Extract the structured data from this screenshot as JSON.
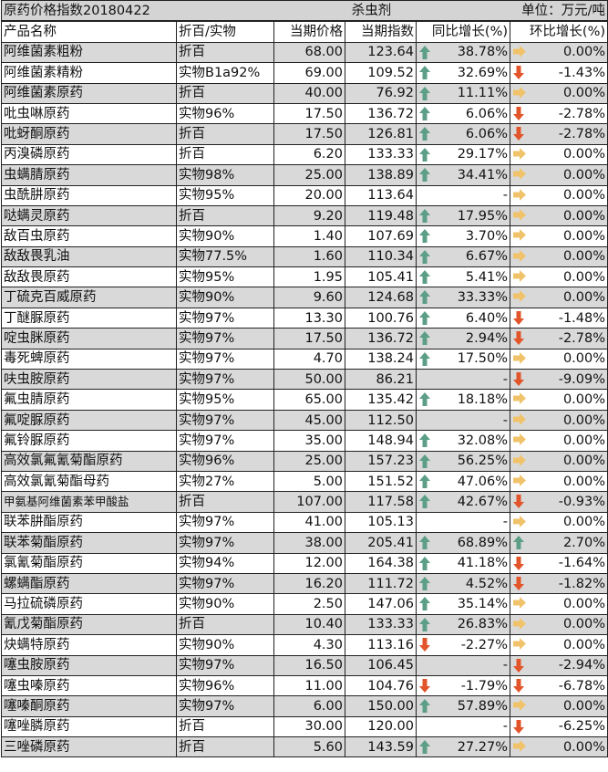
{
  "title": {
    "left": "原药价格指数20180422",
    "center": "杀虫剂",
    "right": "单位：万元/吨"
  },
  "headers": [
    "产品名称",
    "折百/实物",
    "当期价格",
    "当期指数",
    "同比增长(%)",
    "环比增长(%)"
  ],
  "colors": {
    "up": "#5d9f86",
    "down": "#e2552a",
    "flat": "#f0c36a",
    "row_gray": "#d9d9d9"
  },
  "rows": [
    {
      "name": "阿维菌素粗粉",
      "spec": "折百",
      "price": "68.00",
      "index": "123.64",
      "yoy": "38.78%",
      "yoy_icon": "up",
      "mom": "0.00%",
      "mom_icon": "flat"
    },
    {
      "name": "阿维菌素精粉",
      "spec": "实物B1a92%",
      "price": "69.00",
      "index": "109.52",
      "yoy": "32.69%",
      "yoy_icon": "up",
      "mom": "-1.43%",
      "mom_icon": "down"
    },
    {
      "name": "阿维菌素原药",
      "spec": "折百",
      "price": "40.00",
      "index": "76.92",
      "yoy": "11.11%",
      "yoy_icon": "up",
      "mom": "0.00%",
      "mom_icon": "flat"
    },
    {
      "name": "吡虫啉原药",
      "spec": "实物96%",
      "price": "17.50",
      "index": "136.72",
      "yoy": "6.06%",
      "yoy_icon": "up",
      "mom": "-2.78%",
      "mom_icon": "down"
    },
    {
      "name": "吡蚜酮原药",
      "spec": "折百",
      "price": "17.50",
      "index": "126.81",
      "yoy": "6.06%",
      "yoy_icon": "up",
      "mom": "-2.78%",
      "mom_icon": "down"
    },
    {
      "name": "丙溴磷原药",
      "spec": "折百",
      "price": "6.20",
      "index": "133.33",
      "yoy": "29.17%",
      "yoy_icon": "up",
      "mom": "0.00%",
      "mom_icon": "flat"
    },
    {
      "name": "虫螨腈原药",
      "spec": "实物98%",
      "price": "25.00",
      "index": "138.89",
      "yoy": "34.41%",
      "yoy_icon": "up",
      "mom": "0.00%",
      "mom_icon": "flat"
    },
    {
      "name": "虫酰肼原药",
      "spec": "实物95%",
      "price": "20.00",
      "index": "113.64",
      "yoy": "-",
      "yoy_icon": "",
      "mom": "0.00%",
      "mom_icon": "flat"
    },
    {
      "name": "哒螨灵原药",
      "spec": "折百",
      "price": "9.20",
      "index": "119.48",
      "yoy": "17.95%",
      "yoy_icon": "up",
      "mom": "0.00%",
      "mom_icon": "flat"
    },
    {
      "name": "敌百虫原药",
      "spec": "实物90%",
      "price": "1.40",
      "index": "107.69",
      "yoy": "3.70%",
      "yoy_icon": "up",
      "mom": "0.00%",
      "mom_icon": "flat"
    },
    {
      "name": "敌敌畏乳油",
      "spec": "实物77.5%",
      "price": "1.60",
      "index": "110.34",
      "yoy": "6.67%",
      "yoy_icon": "up",
      "mom": "0.00%",
      "mom_icon": "flat"
    },
    {
      "name": "敌敌畏原药",
      "spec": "实物95%",
      "price": "1.95",
      "index": "105.41",
      "yoy": "5.41%",
      "yoy_icon": "up",
      "mom": "0.00%",
      "mom_icon": "flat"
    },
    {
      "name": "丁硫克百威原药",
      "spec": "实物90%",
      "price": "9.60",
      "index": "124.68",
      "yoy": "33.33%",
      "yoy_icon": "up",
      "mom": "0.00%",
      "mom_icon": "flat"
    },
    {
      "name": "丁醚脲原药",
      "spec": "实物97%",
      "price": "13.30",
      "index": "100.76",
      "yoy": "6.40%",
      "yoy_icon": "up",
      "mom": "-1.48%",
      "mom_icon": "down"
    },
    {
      "name": "啶虫脒原药",
      "spec": "实物97%",
      "price": "17.50",
      "index": "136.72",
      "yoy": "2.94%",
      "yoy_icon": "up",
      "mom": "-2.78%",
      "mom_icon": "down"
    },
    {
      "name": "毒死蜱原药",
      "spec": "实物97%",
      "price": "4.70",
      "index": "138.24",
      "yoy": "17.50%",
      "yoy_icon": "up",
      "mom": "0.00%",
      "mom_icon": "flat"
    },
    {
      "name": "呋虫胺原药",
      "spec": "实物97%",
      "price": "50.00",
      "index": "86.21",
      "yoy": "-",
      "yoy_icon": "",
      "mom": "-9.09%",
      "mom_icon": "down"
    },
    {
      "name": "氟虫腈原药",
      "spec": "实物95%",
      "price": "65.00",
      "index": "135.42",
      "yoy": "18.18%",
      "yoy_icon": "up",
      "mom": "0.00%",
      "mom_icon": "flat"
    },
    {
      "name": "氟啶脲原药",
      "spec": "实物97%",
      "price": "45.00",
      "index": "112.50",
      "yoy": "-",
      "yoy_icon": "",
      "mom": "0.00%",
      "mom_icon": "flat"
    },
    {
      "name": "氟铃脲原药",
      "spec": "实物97%",
      "price": "35.00",
      "index": "148.94",
      "yoy": "32.08%",
      "yoy_icon": "up",
      "mom": "0.00%",
      "mom_icon": "flat"
    },
    {
      "name": "高效氯氟氰菊酯原药",
      "spec": "实物96%",
      "price": "25.00",
      "index": "157.23",
      "yoy": "56.25%",
      "yoy_icon": "up",
      "mom": "0.00%",
      "mom_icon": "flat"
    },
    {
      "name": "高效氯氰菊酯母药",
      "spec": "实物27%",
      "price": "5.00",
      "index": "151.52",
      "yoy": "47.06%",
      "yoy_icon": "up",
      "mom": "0.00%",
      "mom_icon": "flat"
    },
    {
      "name": "甲氨基阿维菌素苯甲酸盐",
      "spec": "折百",
      "price": "107.00",
      "index": "117.58",
      "yoy": "42.67%",
      "yoy_icon": "up",
      "mom": "-0.93%",
      "mom_icon": "down"
    },
    {
      "name": "联苯肼酯原药",
      "spec": "实物97%",
      "price": "41.00",
      "index": "105.13",
      "yoy": "-",
      "yoy_icon": "",
      "mom": "0.00%",
      "mom_icon": "flat"
    },
    {
      "name": "联苯菊酯原药",
      "spec": "实物97%",
      "price": "38.00",
      "index": "205.41",
      "yoy": "68.89%",
      "yoy_icon": "up",
      "mom": "2.70%",
      "mom_icon": "up"
    },
    {
      "name": "氯氰菊酯原药",
      "spec": "实物94%",
      "price": "12.00",
      "index": "164.38",
      "yoy": "41.18%",
      "yoy_icon": "up",
      "mom": "-1.64%",
      "mom_icon": "down"
    },
    {
      "name": "螺螨酯原药",
      "spec": "实物97%",
      "price": "16.20",
      "index": "111.72",
      "yoy": "4.52%",
      "yoy_icon": "up",
      "mom": "-1.82%",
      "mom_icon": "down"
    },
    {
      "name": "马拉硫磷原药",
      "spec": "实物90%",
      "price": "2.50",
      "index": "147.06",
      "yoy": "35.14%",
      "yoy_icon": "up",
      "mom": "0.00%",
      "mom_icon": "flat"
    },
    {
      "name": "氰戊菊酯原药",
      "spec": "折百",
      "price": "10.40",
      "index": "133.33",
      "yoy": "26.83%",
      "yoy_icon": "up",
      "mom": "0.00%",
      "mom_icon": "flat"
    },
    {
      "name": "炔螨特原药",
      "spec": "实物90%",
      "price": "4.30",
      "index": "113.16",
      "yoy": "-2.27%",
      "yoy_icon": "down",
      "mom": "0.00%",
      "mom_icon": "flat"
    },
    {
      "name": "噻虫胺原药",
      "spec": "实物97%",
      "price": "16.50",
      "index": "106.45",
      "yoy": "-",
      "yoy_icon": "",
      "mom": "-2.94%",
      "mom_icon": "down"
    },
    {
      "name": "噻虫嗪原药",
      "spec": "实物96%",
      "price": "11.00",
      "index": "104.76",
      "yoy": "-1.79%",
      "yoy_icon": "down",
      "mom": "-6.78%",
      "mom_icon": "down"
    },
    {
      "name": "噻嗪酮原药",
      "spec": "实物97%",
      "price": "6.00",
      "index": "150.00",
      "yoy": "57.89%",
      "yoy_icon": "up",
      "mom": "0.00%",
      "mom_icon": "flat"
    },
    {
      "name": "噻唑膦原药",
      "spec": "折百",
      "price": "30.00",
      "index": "120.00",
      "yoy": "-",
      "yoy_icon": "",
      "mom": "-6.25%",
      "mom_icon": "down"
    },
    {
      "name": "三唑磷原药",
      "spec": "折百",
      "price": "5.60",
      "index": "143.59",
      "yoy": "27.27%",
      "yoy_icon": "up",
      "mom": "0.00%",
      "mom_icon": "flat"
    }
  ]
}
